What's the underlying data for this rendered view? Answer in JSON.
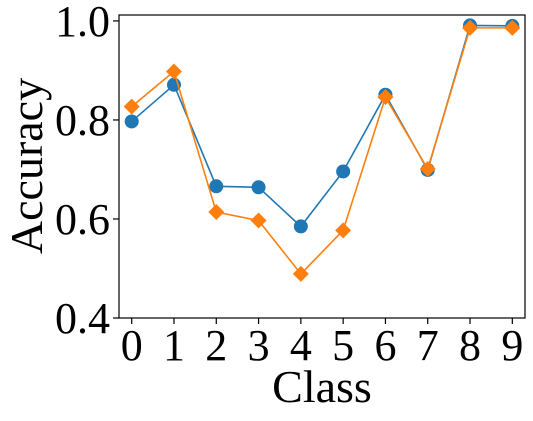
{
  "chart_data": {
    "type": "line",
    "xlabel": "Class",
    "ylabel": "Accuracy",
    "x": [
      0,
      1,
      2,
      3,
      4,
      5,
      6,
      7,
      8,
      9
    ],
    "xticks": [
      "0",
      "1",
      "2",
      "3",
      "4",
      "5",
      "6",
      "7",
      "8",
      "9"
    ],
    "yticks": [
      "0.4",
      "0.6",
      "0.8",
      "1.0"
    ],
    "xlim": [
      -0.3,
      9.3
    ],
    "ylim": [
      0.4,
      1.012
    ],
    "grid": false,
    "series": [
      {
        "color": "#1f77b4",
        "marker": "circle",
        "values": [
          0.797,
          0.871,
          0.666,
          0.664,
          0.585,
          0.696,
          0.851,
          0.699,
          0.991,
          0.99
        ]
      },
      {
        "color": "#ff7f0e",
        "marker": "diamond",
        "values": [
          0.827,
          0.898,
          0.614,
          0.597,
          0.489,
          0.577,
          0.846,
          0.701,
          0.986,
          0.986
        ]
      }
    ]
  }
}
